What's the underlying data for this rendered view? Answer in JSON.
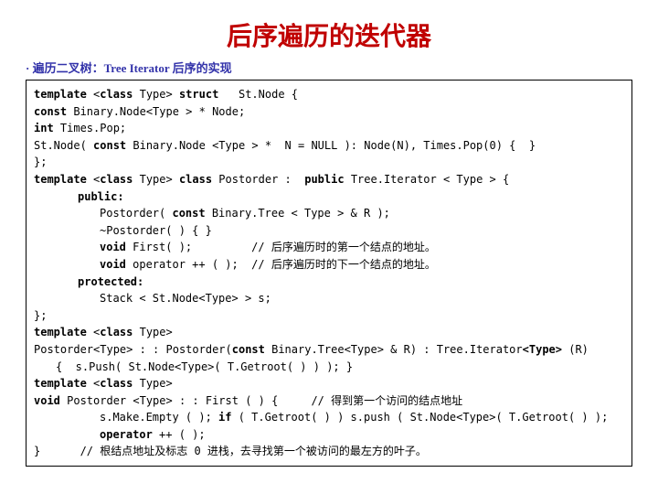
{
  "title": "后序遍历的迭代器",
  "subtitle": "· 遍历二叉树：Tree Iterator    后序的实现",
  "colors": {
    "title_color": "#c00000",
    "subtitle_color": "#3333aa",
    "text_color": "#000000",
    "border_color": "#000000",
    "background": "#ffffff"
  },
  "fonts": {
    "title_size": 28,
    "body_size": 12
  },
  "code": {
    "l1a": "template",
    "l1b": " <",
    "l1c": "class",
    "l1d": " Type> ",
    "l1e": "struct",
    "l1f": "   St.Node {",
    "l2a": "const",
    "l2b": " Binary.Node<Type > * Node;",
    "l3a": "int",
    "l3b": " Times.Pop;",
    "l4a": "St.Node( ",
    "l4b": "const",
    "l4c": " Binary.Node <Type > *  N = NULL ): Node(N), Times.Pop(0) {  }",
    "l5": "};",
    "l6a": "template",
    "l6b": " <",
    "l6c": "class",
    "l6d": " Type> ",
    "l6e": "class",
    "l6f": " Postorder :  ",
    "l6g": "public",
    "l6h": " Tree.Iterator < Type > {",
    "l7": "public:",
    "l8a": "Postorder( ",
    "l8b": "const",
    "l8c": " Binary.Tree < Type > & R );",
    "l9": "~Postorder( ) { }",
    "l10a": "void",
    "l10b": " First( );         // 后序遍历时的第一个结点的地址。",
    "l11a": "void",
    "l11b": " operator ++ ( );  // 后序遍历时的下一个结点的地址。",
    "l12": "protected:",
    "l13": "Stack < St.Node<Type> > s;",
    "l14": "};",
    "l15a": "template",
    "l15b": " <",
    "l15c": "class",
    "l15d": " Type>",
    "l16a": "Postorder<Type> : : Postorder(",
    "l16b": "const",
    "l16c": " Binary.Tree<Type> & R) : Tree.Iterator",
    "l16d": "<Type>",
    "l16e": " (R)",
    "l17": "{  s.Push( St.Node<Type>( T.Getroot( ) ) ); }",
    "l18a": "template",
    "l18b": " <",
    "l18c": "class",
    "l18d": " Type>",
    "l19a": "void",
    "l19b": " Postorder <Type> : : First ( ) {     // 得到第一个访问的结点地址",
    "l20a": "s.Make.Empty ( ); ",
    "l20b": "if",
    "l20c": " ( T.Getroot( ) ) s.push ( St.Node<Type>( T.Getroot( ) );",
    "l21a": "operator",
    "l21b": " ++ ( );",
    "l22": "}      // 根结点地址及标志 0 进栈，去寻找第一个被访问的最左方的叶子。"
  }
}
